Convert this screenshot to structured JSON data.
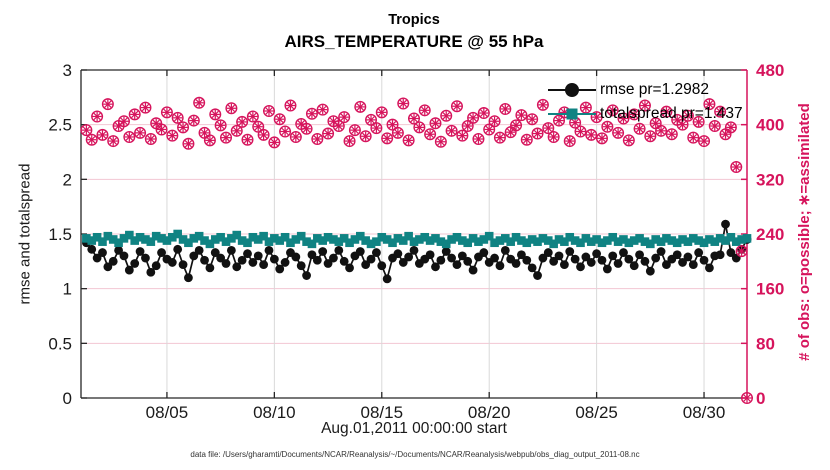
{
  "figure": {
    "background": "#FFFFFF"
  },
  "chart_data": {
    "type": "line",
    "title": "Tropics",
    "subtitle": "AIRS_TEMPERATURE @ 55 hPa",
    "xlabel": "Aug.01,2011 00:00:00 start",
    "ylabel_left": "rmse and totalspread",
    "ylabel_right": "# of obs: o=possible; ∗=assimilated",
    "caption": "data file: /Users/gharamti/Documents/NCAR/Reanalysis/~/Documents/NCAR/Reanalysis/webpub/obs_diag_output_2011-08.nc",
    "x_range_days": [
      0,
      31
    ],
    "x_start_day": 0.25,
    "x_step_days": 0.25,
    "ylim_left": [
      0,
      3
    ],
    "ylim_right": [
      0,
      480
    ],
    "grid": true,
    "legend_position": "top-right-inside",
    "xticks": [
      {
        "day": 4,
        "label": "08/05"
      },
      {
        "day": 9,
        "label": "08/10"
      },
      {
        "day": 14,
        "label": "08/15"
      },
      {
        "day": 19,
        "label": "08/20"
      },
      {
        "day": 24,
        "label": "08/25"
      },
      {
        "day": 29,
        "label": "08/30"
      }
    ],
    "yticks_left": [
      {
        "v": 0,
        "label": "0"
      },
      {
        "v": 0.5,
        "label": "0.5"
      },
      {
        "v": 1,
        "label": "1"
      },
      {
        "v": 1.5,
        "label": "1.5"
      },
      {
        "v": 2,
        "label": "2"
      },
      {
        "v": 2.5,
        "label": "2.5"
      },
      {
        "v": 3,
        "label": "3"
      }
    ],
    "yticks_right": [
      {
        "v": 0,
        "label": "0"
      },
      {
        "v": 80,
        "label": "80"
      },
      {
        "v": 160,
        "label": "160"
      },
      {
        "v": 240,
        "label": "240"
      },
      {
        "v": 320,
        "label": "320"
      },
      {
        "v": 400,
        "label": "400"
      },
      {
        "v": 480,
        "label": "480"
      }
    ],
    "series": [
      {
        "name": "rmse",
        "label": "rmse pr=1.2982",
        "color": "#111111",
        "marker": "circle",
        "axis": "left",
        "values": [
          1.42,
          1.36,
          1.28,
          1.33,
          1.2,
          1.25,
          1.35,
          1.3,
          1.17,
          1.23,
          1.34,
          1.28,
          1.15,
          1.21,
          1.33,
          1.27,
          1.24,
          1.36,
          1.22,
          1.1,
          1.3,
          1.35,
          1.26,
          1.19,
          1.33,
          1.28,
          1.23,
          1.35,
          1.2,
          1.26,
          1.32,
          1.24,
          1.3,
          1.22,
          1.35,
          1.27,
          1.18,
          1.24,
          1.33,
          1.29,
          1.21,
          1.12,
          1.31,
          1.26,
          1.34,
          1.23,
          1.28,
          1.35,
          1.25,
          1.19,
          1.3,
          1.34,
          1.22,
          1.27,
          1.33,
          1.21,
          1.09,
          1.28,
          1.32,
          1.24,
          1.29,
          1.35,
          1.23,
          1.27,
          1.31,
          1.2,
          1.26,
          1.34,
          1.28,
          1.22,
          1.3,
          1.25,
          1.17,
          1.29,
          1.33,
          1.24,
          1.28,
          1.21,
          1.35,
          1.27,
          1.23,
          1.31,
          1.26,
          1.19,
          1.12,
          1.28,
          1.33,
          1.25,
          1.3,
          1.22,
          1.34,
          1.27,
          1.2,
          1.29,
          1.24,
          1.32,
          1.26,
          1.18,
          1.3,
          1.23,
          1.33,
          1.27,
          1.21,
          1.31,
          1.25,
          1.16,
          1.28,
          1.34,
          1.22,
          1.27,
          1.31,
          1.24,
          1.29,
          1.22,
          1.33,
          1.26,
          1.19,
          1.3,
          1.31,
          1.59,
          1.33,
          1.28,
          1.36,
          1.45
        ]
      },
      {
        "name": "totalspread",
        "label": "totalspread pr=1.437",
        "color": "#108383",
        "marker": "square",
        "axis": "left",
        "values": [
          1.46,
          1.44,
          1.47,
          1.43,
          1.48,
          1.45,
          1.42,
          1.46,
          1.49,
          1.44,
          1.47,
          1.45,
          1.43,
          1.48,
          1.46,
          1.44,
          1.47,
          1.5,
          1.45,
          1.42,
          1.46,
          1.48,
          1.44,
          1.41,
          1.45,
          1.47,
          1.43,
          1.46,
          1.49,
          1.44,
          1.42,
          1.47,
          1.45,
          1.48,
          1.43,
          1.46,
          1.44,
          1.47,
          1.42,
          1.45,
          1.48,
          1.43,
          1.41,
          1.46,
          1.44,
          1.47,
          1.45,
          1.43,
          1.46,
          1.42,
          1.45,
          1.48,
          1.44,
          1.41,
          1.43,
          1.47,
          1.45,
          1.42,
          1.46,
          1.44,
          1.48,
          1.43,
          1.45,
          1.47,
          1.44,
          1.46,
          1.43,
          1.41,
          1.45,
          1.47,
          1.44,
          1.42,
          1.46,
          1.43,
          1.45,
          1.48,
          1.42,
          1.44,
          1.46,
          1.43,
          1.47,
          1.44,
          1.42,
          1.45,
          1.43,
          1.46,
          1.44,
          1.41,
          1.45,
          1.43,
          1.47,
          1.44,
          1.42,
          1.46,
          1.43,
          1.45,
          1.42,
          1.44,
          1.47,
          1.43,
          1.45,
          1.42,
          1.44,
          1.46,
          1.43,
          1.41,
          1.45,
          1.43,
          1.46,
          1.44,
          1.42,
          1.45,
          1.43,
          1.46,
          1.44,
          1.42,
          1.45,
          1.43,
          1.46,
          1.44,
          1.47,
          1.43,
          1.45,
          1.46
        ]
      },
      {
        "name": "observations",
        "label": "# of obs (o=possible, ∗=assimilated)",
        "color": "#D6145C",
        "marker": "circle-asterisk",
        "axis": "right",
        "values": [
          392,
          378,
          412,
          385,
          430,
          376,
          398,
          405,
          382,
          415,
          388,
          425,
          379,
          402,
          393,
          418,
          384,
          410,
          396,
          372,
          406,
          432,
          388,
          377,
          415,
          399,
          381,
          424,
          391,
          404,
          378,
          412,
          397,
          385,
          420,
          374,
          408,
          390,
          428,
          382,
          401,
          394,
          416,
          379,
          422,
          387,
          405,
          398,
          411,
          376,
          392,
          426,
          383,
          407,
          395,
          418,
          380,
          400,
          388,
          431,
          377,
          409,
          396,
          421,
          386,
          402,
          375,
          413,
          391,
          427,
          384,
          398,
          410,
          379,
          417,
          393,
          405,
          381,
          423,
          389,
          399,
          414,
          378,
          408,
          387,
          429,
          395,
          382,
          406,
          418,
          376,
          403,
          390,
          425,
          385,
          411,
          380,
          397,
          421,
          388,
          409,
          377,
          415,
          394,
          428,
          383,
          402,
          391,
          419,
          386,
          407,
          400,
          413,
          381,
          404,
          376,
          430,
          398,
          419,
          386,
          396,
          338,
          215,
          0
        ]
      }
    ],
    "colors": {
      "accent_crimson": "#D6145C",
      "series_black": "#111111",
      "series_teal": "#108383",
      "grid_vertical": "#D9D9D9",
      "grid_horizontal": "#F2C6D2",
      "spine": "#262626",
      "caption_text": "#333333",
      "background": "#FFFFFF"
    }
  }
}
